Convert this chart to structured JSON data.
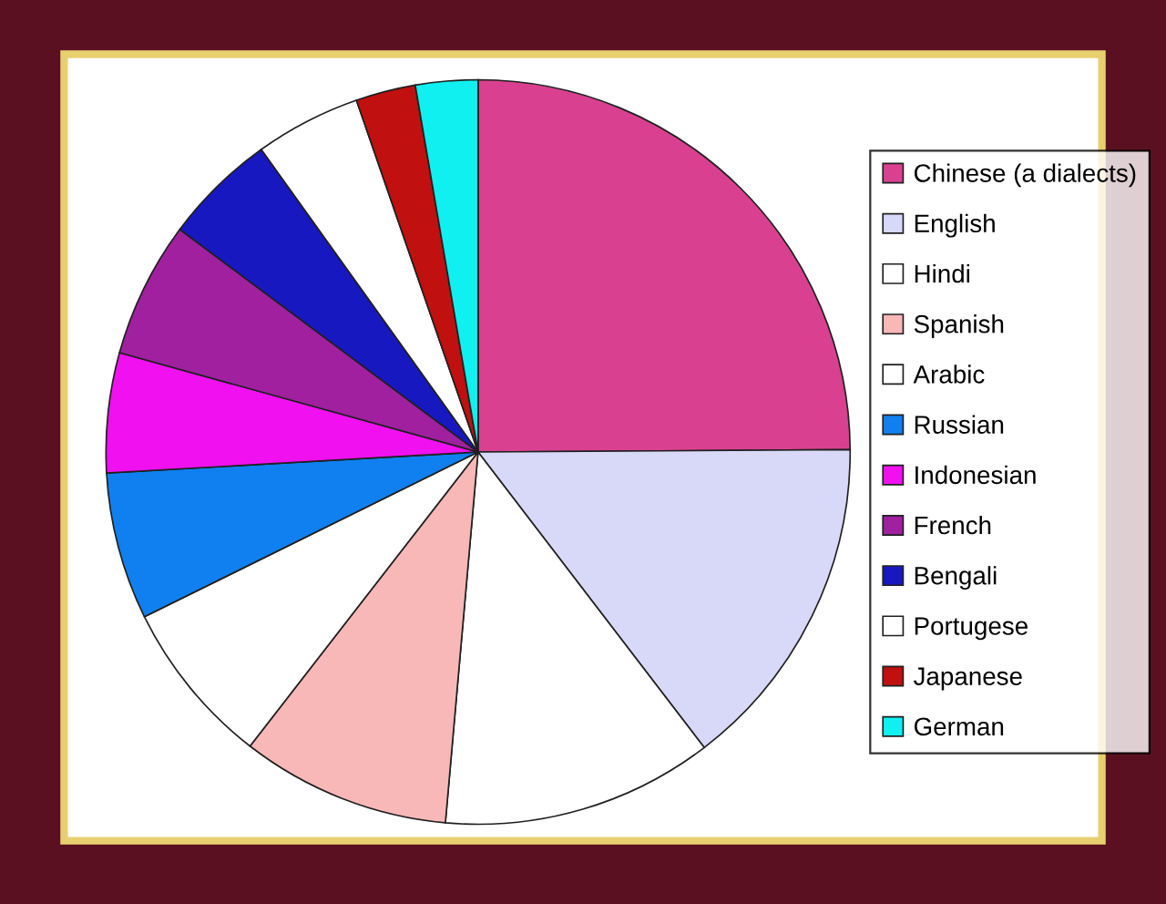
{
  "chart_data": {
    "type": "pie",
    "categories": [
      "Chinese (a dialects)",
      "English",
      "Hindi",
      "Spanish",
      "Arabic",
      "Russian",
      "Indonesian",
      "French",
      "Bengali",
      "Portugese",
      "Japanese",
      "German"
    ],
    "values": [
      24.9,
      14.7,
      11.8,
      9.1,
      7.2,
      6.4,
      5.2,
      5.9,
      4.9,
      4.6,
      2.6,
      2.7
    ],
    "colors": [
      "#d94190",
      "#d8d8f8",
      "#ffffff",
      "#f8b8b8",
      "#ffffff",
      "#1080f0",
      "#f010f0",
      "#a020a0",
      "#1818c0",
      "#ffffff",
      "#c01010",
      "#10f0f0"
    ],
    "legend": "right"
  }
}
